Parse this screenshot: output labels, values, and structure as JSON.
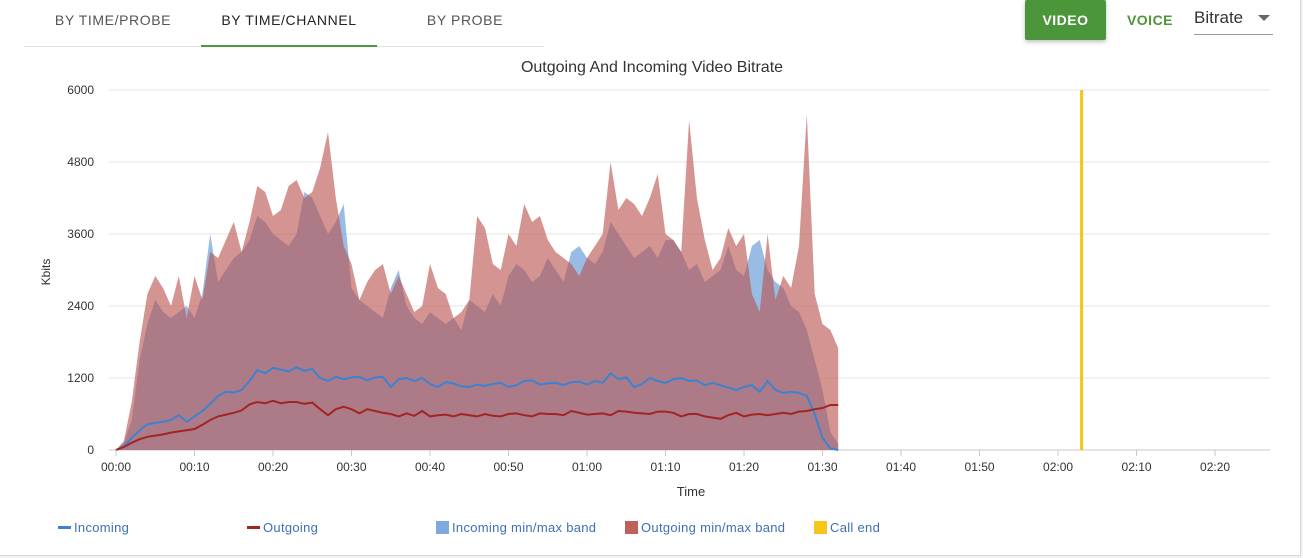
{
  "tabs": [
    {
      "label": "BY TIME/PROBE",
      "active": false
    },
    {
      "label": "BY TIME/CHANNEL",
      "active": true
    },
    {
      "label": "BY PROBE",
      "active": false
    }
  ],
  "controls": {
    "video_label": "VIDEO",
    "voice_label": "VOICE",
    "metric_select": "Bitrate"
  },
  "colors": {
    "incoming": "#3d82d1",
    "outgoing": "#a32522",
    "incoming_band": "#6d9fd8",
    "outgoing_band": "#b9524e",
    "call_end": "#f5c518",
    "accent": "#4b953a"
  },
  "legend": [
    {
      "label": "Incoming",
      "kind": "line",
      "color": "#3d82d1"
    },
    {
      "label": "Outgoing",
      "kind": "line",
      "color": "#a32522"
    },
    {
      "label": "Incoming min/max band",
      "kind": "box",
      "color": "#7fa9dc"
    },
    {
      "label": "Outgoing min/max band",
      "kind": "box",
      "color": "#c0605b"
    },
    {
      "label": "Call end",
      "kind": "box",
      "color": "#f5c518"
    }
  ],
  "chart_data": {
    "type": "area",
    "title": "Outgoing And Incoming Video Bitrate",
    "xlabel": "Time",
    "ylabel": "Kbits",
    "xlim": [
      0,
      8820
    ],
    "ylim": [
      0,
      6000
    ],
    "x_tick_labels": [
      "00:00",
      "00:10",
      "00:20",
      "00:30",
      "00:40",
      "00:50",
      "01:00",
      "01:10",
      "01:20",
      "01:30",
      "01:40",
      "01:50",
      "02:00",
      "02:10",
      "02:20"
    ],
    "y_tick_labels": [
      "0",
      "1200",
      "2400",
      "3600",
      "4800",
      "6000"
    ],
    "grid": true,
    "call_end_time": "02:03",
    "step_seconds": 60,
    "incoming_avg": [
      0,
      60,
      200,
      330,
      430,
      450,
      470,
      500,
      580,
      470,
      560,
      650,
      770,
      900,
      970,
      960,
      1000,
      1150,
      1330,
      1280,
      1370,
      1340,
      1310,
      1380,
      1320,
      1350,
      1200,
      1150,
      1220,
      1180,
      1210,
      1220,
      1160,
      1210,
      1220,
      1050,
      1180,
      1200,
      1150,
      1200,
      1100,
      1050,
      1130,
      1110,
      1060,
      1050,
      1090,
      1070,
      1100,
      1120,
      1050,
      1080,
      1150,
      1160,
      1090,
      1110,
      1120,
      1080,
      1130,
      1140,
      1090,
      1150,
      1120,
      1280,
      1180,
      1210,
      1050,
      1100,
      1200,
      1150,
      1120,
      1180,
      1200,
      1150,
      1160,
      1080,
      1120,
      1080,
      1040,
      1000,
      1050,
      1080,
      970,
      1150,
      1000,
      950,
      970,
      950,
      900,
      600,
      200,
      30,
      0
    ],
    "outgoing_avg": [
      0,
      50,
      120,
      180,
      220,
      240,
      260,
      290,
      310,
      330,
      350,
      420,
      500,
      560,
      590,
      620,
      660,
      760,
      800,
      780,
      820,
      780,
      800,
      800,
      770,
      790,
      680,
      580,
      680,
      720,
      680,
      610,
      680,
      650,
      620,
      600,
      560,
      610,
      570,
      650,
      560,
      580,
      590,
      560,
      600,
      580,
      560,
      600,
      570,
      560,
      600,
      610,
      580,
      560,
      610,
      600,
      600,
      580,
      650,
      620,
      590,
      600,
      610,
      580,
      650,
      640,
      620,
      610,
      600,
      640,
      640,
      620,
      560,
      600,
      600,
      560,
      540,
      520,
      580,
      620,
      560,
      590,
      600,
      580,
      600,
      620,
      600,
      640,
      650,
      680,
      700,
      750,
      750
    ],
    "incoming_max": [
      0,
      120,
      500,
      1500,
      2100,
      2500,
      2300,
      2200,
      2300,
      2400,
      2200,
      2600,
      3600,
      2800,
      3000,
      3200,
      3300,
      3500,
      3900,
      3800,
      3600,
      3500,
      3400,
      3600,
      4300,
      4200,
      3900,
      3600,
      3800,
      4100,
      2700,
      2500,
      2400,
      2300,
      2200,
      2700,
      3000,
      2400,
      2200,
      2100,
      2300,
      2200,
      2100,
      2200,
      2000,
      2500,
      2400,
      2300,
      2600,
      2400,
      2900,
      3100,
      3000,
      2800,
      2900,
      3200,
      3000,
      2800,
      3300,
      3400,
      3200,
      3100,
      3300,
      3800,
      3600,
      3400,
      3200,
      3300,
      3400,
      3200,
      3500,
      3500,
      3300,
      3000,
      3100,
      2800,
      2900,
      3000,
      3400,
      3000,
      2900,
      3400,
      3500,
      3000,
      2800,
      2700,
      2400,
      2300,
      2000,
      1500,
      1000,
      300,
      100
    ],
    "outgoing_max": [
      0,
      150,
      800,
      1800,
      2600,
      2900,
      2700,
      2400,
      2900,
      2200,
      2900,
      2500,
      3300,
      3200,
      3500,
      3800,
      3300,
      3800,
      4400,
      4300,
      3900,
      4000,
      4400,
      4500,
      4200,
      4300,
      4700,
      5300,
      4200,
      3400,
      3100,
      2500,
      2800,
      3000,
      3100,
      2600,
      2900,
      2600,
      2300,
      2400,
      3100,
      2700,
      2600,
      2200,
      2300,
      2500,
      3900,
      3700,
      3100,
      3000,
      3600,
      3400,
      4100,
      3800,
      3900,
      3500,
      3300,
      3200,
      3100,
      2900,
      3200,
      3400,
      3600,
      4800,
      4000,
      4200,
      4100,
      3900,
      4200,
      4600,
      3600,
      3500,
      3300,
      5500,
      4200,
      3500,
      3000,
      3200,
      3700,
      3400,
      3600,
      2600,
      2300,
      3600,
      2500,
      2900,
      2700,
      3400,
      5600,
      2600,
      2100,
      2000,
      1700
    ],
    "incoming_min": [
      0,
      0,
      0,
      0,
      0,
      0,
      0,
      0,
      0,
      0,
      0,
      0,
      0,
      0,
      0,
      0,
      0,
      0,
      0,
      0,
      0,
      0,
      0,
      0,
      0,
      0,
      0,
      0,
      0,
      0,
      0,
      0,
      0,
      0,
      0,
      0,
      0,
      0,
      0,
      0,
      0,
      0,
      0,
      0,
      0,
      0,
      0,
      0,
      0,
      0,
      0,
      0,
      0,
      0,
      0,
      0,
      0,
      0,
      0,
      0,
      0,
      0,
      0,
      0,
      0,
      0,
      0,
      0,
      0,
      0,
      0,
      0,
      0,
      0,
      0,
      0,
      0,
      0,
      0,
      0,
      0,
      0,
      0,
      0,
      0,
      0,
      0,
      0,
      0,
      0,
      0,
      0,
      0
    ],
    "outgoing_min": [
      0,
      0,
      0,
      0,
      0,
      0,
      0,
      0,
      0,
      0,
      0,
      0,
      0,
      0,
      0,
      0,
      0,
      0,
      0,
      0,
      0,
      0,
      0,
      0,
      0,
      0,
      0,
      0,
      0,
      0,
      0,
      0,
      0,
      0,
      0,
      0,
      0,
      0,
      0,
      0,
      0,
      0,
      0,
      0,
      0,
      0,
      0,
      0,
      0,
      0,
      0,
      0,
      0,
      0,
      0,
      0,
      0,
      0,
      0,
      0,
      0,
      0,
      0,
      0,
      0,
      0,
      0,
      0,
      0,
      0,
      0,
      0,
      0,
      0,
      0,
      0,
      0,
      0,
      0,
      0,
      0,
      0,
      0,
      0,
      0,
      0,
      0,
      0,
      0,
      0,
      0,
      0,
      0
    ]
  }
}
